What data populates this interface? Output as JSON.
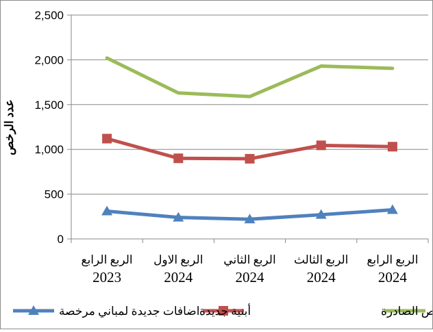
{
  "chart_data": {
    "type": "line",
    "categories": [
      {
        "quarter": "الربع الرابع",
        "year": "2023"
      },
      {
        "quarter": "الربع الاول",
        "year": "2024"
      },
      {
        "quarter": "الربع الثاني",
        "year": "2024"
      },
      {
        "quarter": "الربع الثالث",
        "year": "2024"
      },
      {
        "quarter": "الربع الرابع",
        "year": "2024"
      }
    ],
    "series": [
      {
        "name": "الرخص الصادرة",
        "values": [
          2020,
          1630,
          1590,
          1930,
          1905
        ],
        "color": "#9bbb59",
        "marker": "none"
      },
      {
        "name": "أبنية جديدة",
        "values": [
          1120,
          900,
          895,
          1045,
          1030
        ],
        "color": "#c0504d",
        "marker": "square"
      },
      {
        "name": "اضافات جديدة لمباني مرخصة",
        "values": [
          310,
          240,
          220,
          270,
          325
        ],
        "color": "#4f81bd",
        "marker": "triangle"
      }
    ],
    "ylabel": "عدد الرخص",
    "xlabel": "",
    "ylim": [
      0,
      2500
    ],
    "yticks": [
      0,
      500,
      1000,
      1500,
      2000,
      2500
    ],
    "ytick_labels": [
      "0",
      "500",
      "1,000",
      "1,500",
      "2,000",
      "2,500"
    ],
    "grid": "horizontal",
    "legend_position": "bottom"
  }
}
